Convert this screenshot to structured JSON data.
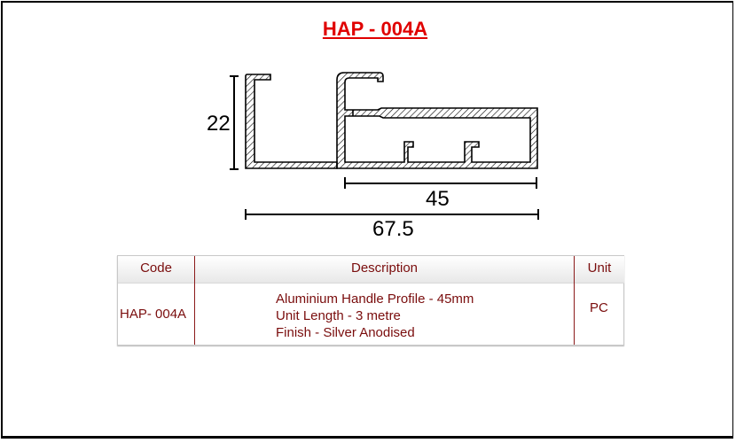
{
  "product": {
    "title": "HAP - 004A"
  },
  "drawing": {
    "dim_height": "22",
    "dim_inner_width": "45",
    "dim_total_width": "67.5"
  },
  "table": {
    "headers": [
      "Code",
      "Description",
      "Unit"
    ],
    "row": {
      "code": "HAP- 004A",
      "description_lines": [
        "Aluminium Handle Profile - 45mm",
        "Unit Length - 3 metre",
        "Finish - Silver Anodised"
      ],
      "unit": "PC"
    }
  },
  "colors": {
    "title": "#e00000",
    "table_text": "#7a0d0d"
  }
}
